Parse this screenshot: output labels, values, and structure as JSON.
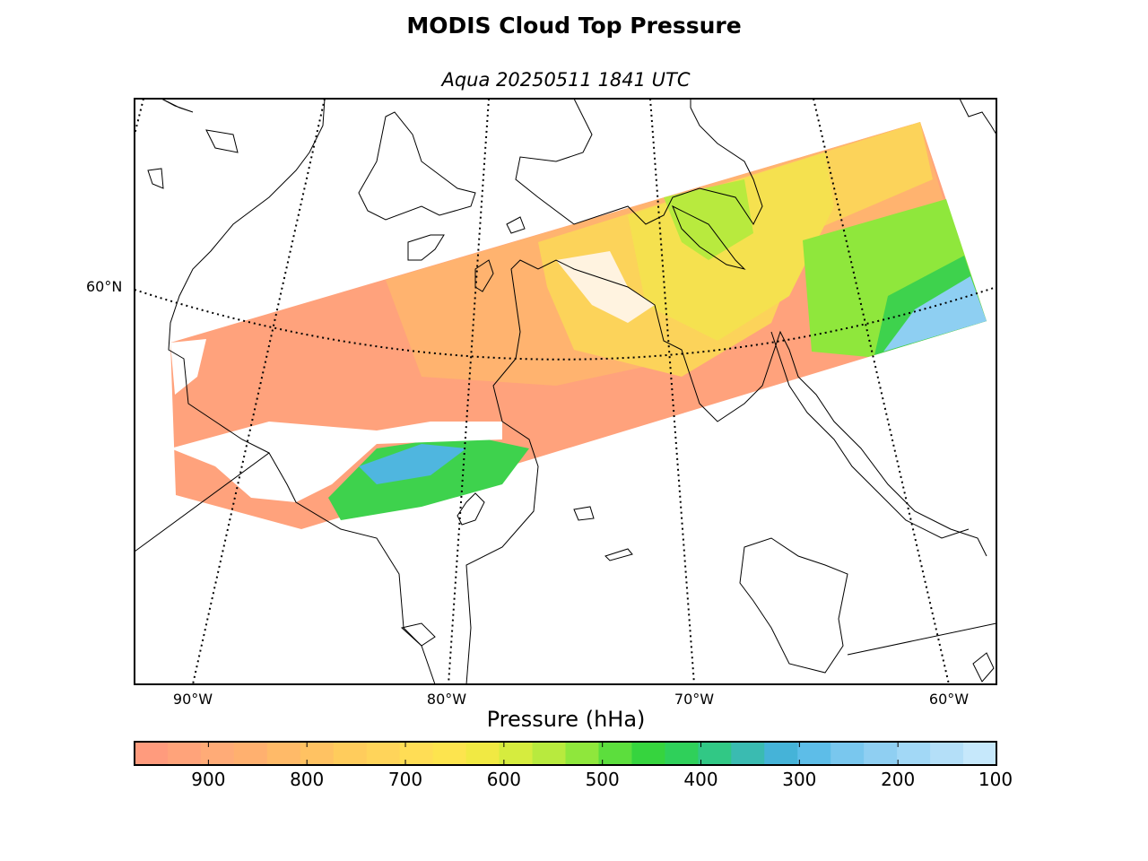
{
  "title": "MODIS Cloud Top Pressure",
  "subtitle": "Aqua 20250511 1841 UTC",
  "map": {
    "longitude_labels": [
      "90°W",
      "80°W",
      "70°W",
      "60°W"
    ],
    "latitude_labels": [
      "60°N"
    ],
    "gridlines": "dotted",
    "land_fill": "none",
    "coastline_color": "#000000"
  },
  "colorbar": {
    "label": "Pressure (hHa)",
    "ticks": [
      "900",
      "800",
      "700",
      "600",
      "500",
      "400",
      "300",
      "200",
      "100"
    ],
    "range_hpa": [
      975,
      100
    ],
    "colors": [
      "#ff9b7d",
      "#ffa37a",
      "#ffab77",
      "#ffb06f",
      "#ffba68",
      "#ffc262",
      "#ffcc5c",
      "#ffd45a",
      "#ffdd55",
      "#fde44e",
      "#f1e943",
      "#d6ec3e",
      "#b8ea3e",
      "#8fe73c",
      "#5cde3d",
      "#36d43e",
      "#2fd05a",
      "#31c885",
      "#3abbb1",
      "#45b3d8",
      "#5dbde8",
      "#79c7ee",
      "#8fcff2",
      "#a2d8f6",
      "#b4dff8",
      "#c6e8fb"
    ]
  }
}
